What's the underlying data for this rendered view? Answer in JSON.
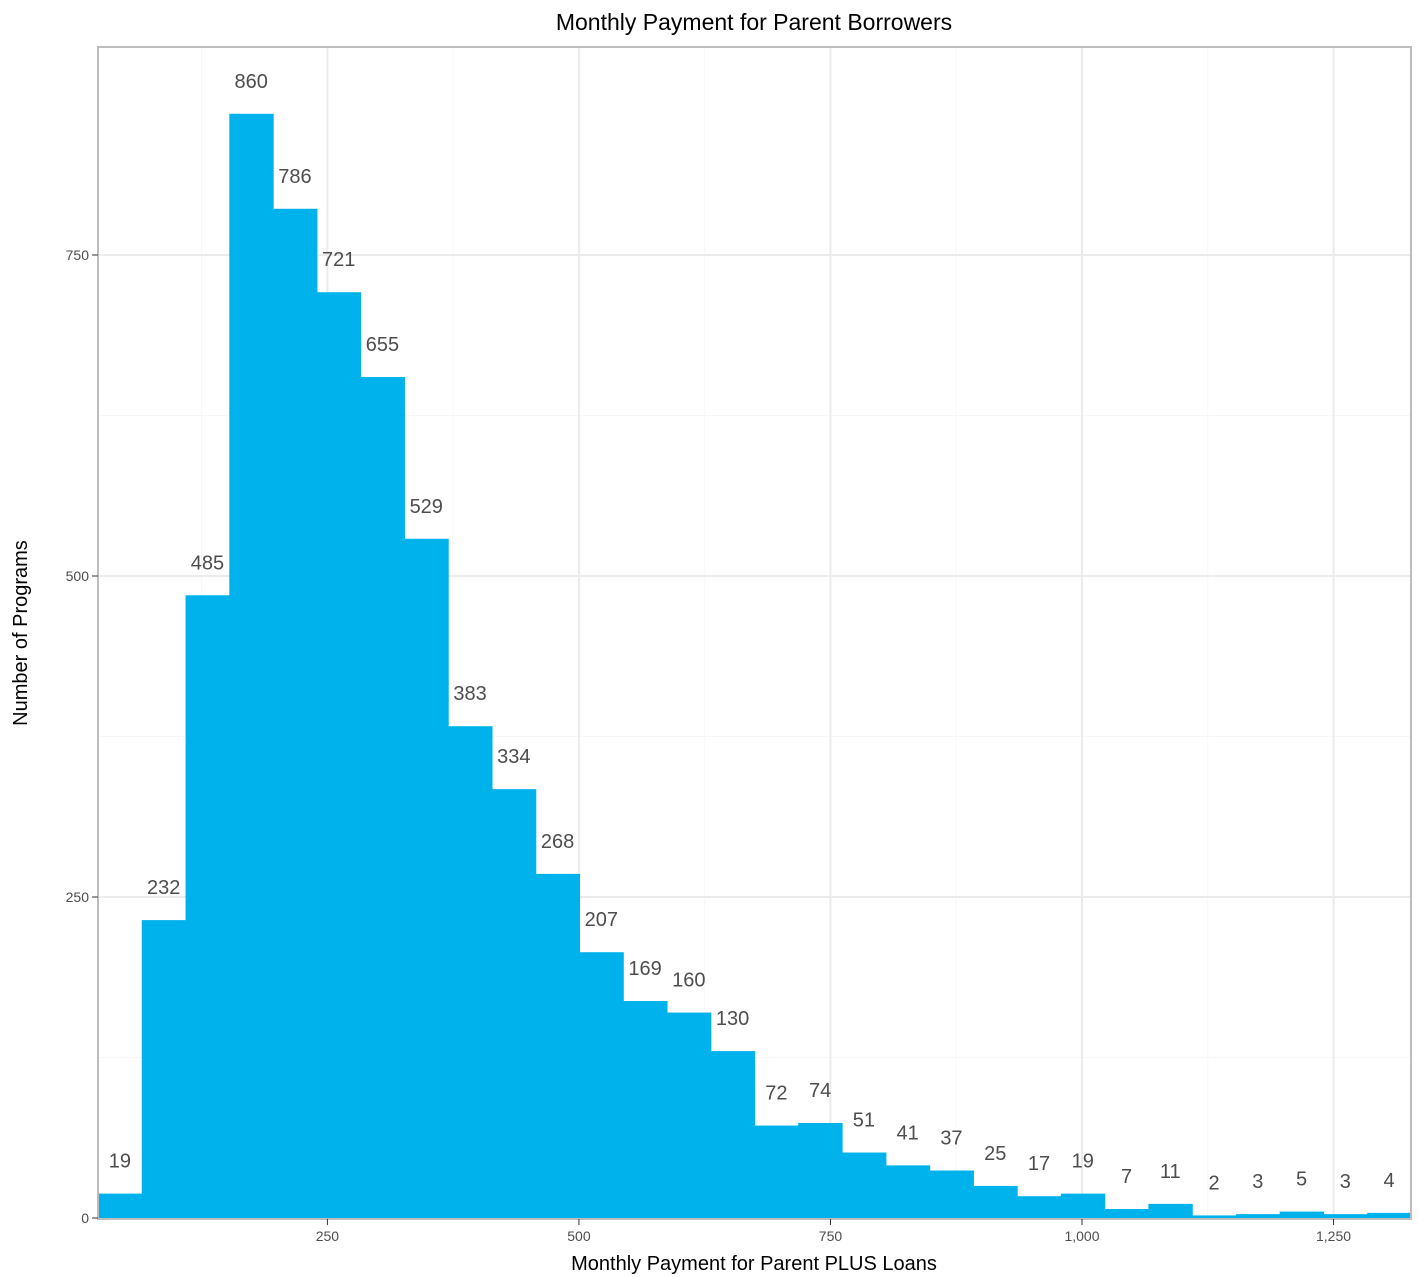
{
  "chart_data": {
    "type": "bar",
    "title": "Monthly Payment for Parent Borrowers",
    "xlabel": "Monthly Payment for Parent PLUS Loans",
    "ylabel": "Number of Programs",
    "bin_start": 22,
    "bin_width": 43.5,
    "values": [
      19,
      232,
      485,
      860,
      786,
      721,
      655,
      529,
      383,
      334,
      268,
      207,
      169,
      160,
      130,
      72,
      74,
      51,
      41,
      37,
      25,
      17,
      19,
      7,
      11,
      2,
      3,
      5,
      3,
      4
    ],
    "xlim": [
      22,
      1327
    ],
    "ylim": [
      0,
      860
    ],
    "x_ticks": [
      {
        "value": 250,
        "label": "250"
      },
      {
        "value": 500,
        "label": "500"
      },
      {
        "value": 750,
        "label": "750"
      },
      {
        "value": 1000,
        "label": "1,000"
      },
      {
        "value": 1250,
        "label": "1,250"
      }
    ],
    "y_ticks": [
      {
        "value": 0,
        "label": "0"
      },
      {
        "value": 250,
        "label": "250"
      },
      {
        "value": 500,
        "label": "500"
      },
      {
        "value": 750,
        "label": "750"
      }
    ],
    "grid": true,
    "legend": "none",
    "bar_color": "#00B2EC"
  }
}
